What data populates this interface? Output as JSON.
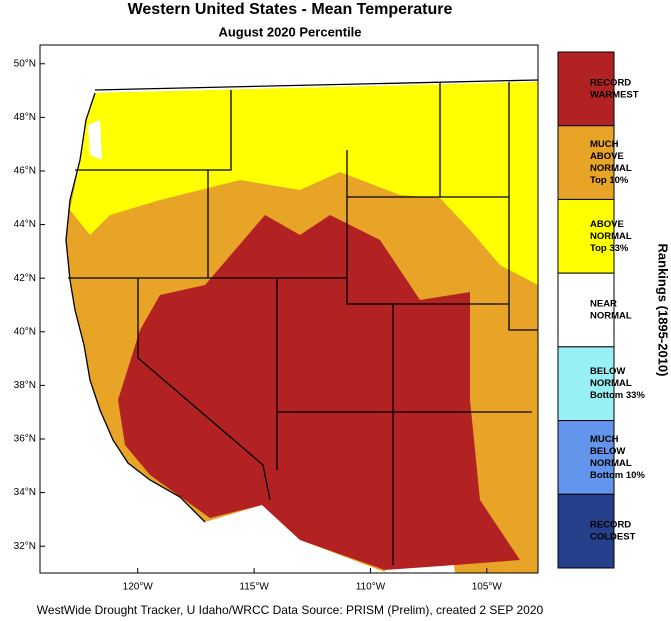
{
  "title": "Western United States - Mean Temperature",
  "subtitle": "August 2020 Percentile",
  "map": {
    "xlim": [
      -124.2,
      -102.8
    ],
    "ylim": [
      31.0,
      50.7
    ],
    "xticks": [
      {
        "value": -120,
        "label": "120°W"
      },
      {
        "value": -115,
        "label": "115°W"
      },
      {
        "value": -110,
        "label": "110°W"
      },
      {
        "value": -105,
        "label": "105°W"
      }
    ],
    "yticks": [
      {
        "value": 32,
        "label": "32°N"
      },
      {
        "value": 34,
        "label": "34°N"
      },
      {
        "value": 36,
        "label": "36°N"
      },
      {
        "value": 38,
        "label": "38°N"
      },
      {
        "value": 40,
        "label": "40°N"
      },
      {
        "value": 42,
        "label": "42°N"
      },
      {
        "value": 44,
        "label": "44°N"
      },
      {
        "value": 46,
        "label": "46°N"
      },
      {
        "value": 48,
        "label": "48°N"
      },
      {
        "value": 50,
        "label": "50°N"
      }
    ]
  },
  "legend": {
    "title": "Rankings (1895-2010)",
    "classes": [
      {
        "lines": [
          "RECORD",
          "WARMEST"
        ],
        "color": "#b22222"
      },
      {
        "lines": [
          "MUCH",
          "ABOVE",
          "NORMAL",
          "Top 10%"
        ],
        "color": "#e8a427"
      },
      {
        "lines": [
          "ABOVE",
          "NORMAL",
          "Top 33%"
        ],
        "color": "#ffff00"
      },
      {
        "lines": [
          "NEAR",
          "NORMAL"
        ],
        "color": "#ffffff"
      },
      {
        "lines": [
          "BELOW",
          "NORMAL",
          "Bottom 33%"
        ],
        "color": "#98f0f5"
      },
      {
        "lines": [
          "MUCH",
          "BELOW",
          "NORMAL",
          "Bottom 10%"
        ],
        "color": "#6495ed"
      },
      {
        "lines": [
          "RECORD",
          "COLDEST"
        ],
        "color": "#27408b"
      }
    ]
  },
  "footer": "WestWide Drought Tracker, U Idaho/WRCC Data Source: PRISM (Prelim), created  2 SEP 2020"
}
